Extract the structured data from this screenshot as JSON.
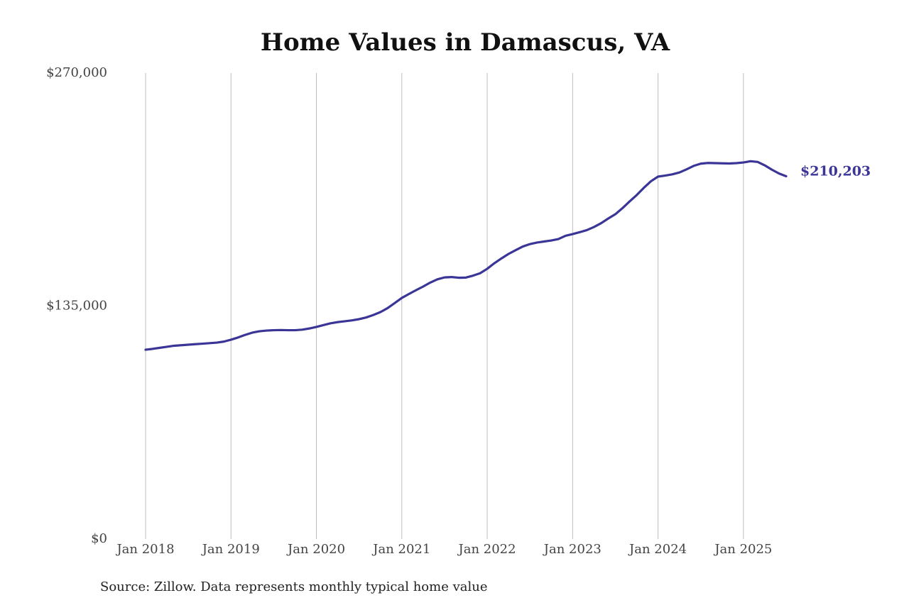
{
  "chart_data": {
    "type": "line",
    "title": "Home Values in Damascus, VA",
    "source": "Source: Zillow. Data represents monthly typical home value",
    "x": [
      "2018-01",
      "2018-02",
      "2018-03",
      "2018-04",
      "2018-05",
      "2018-06",
      "2018-07",
      "2018-08",
      "2018-09",
      "2018-10",
      "2018-11",
      "2018-12",
      "2019-01",
      "2019-02",
      "2019-03",
      "2019-04",
      "2019-05",
      "2019-06",
      "2019-07",
      "2019-08",
      "2019-09",
      "2019-10",
      "2019-11",
      "2019-12",
      "2020-01",
      "2020-02",
      "2020-03",
      "2020-04",
      "2020-05",
      "2020-06",
      "2020-07",
      "2020-08",
      "2020-09",
      "2020-10",
      "2020-11",
      "2020-12",
      "2021-01",
      "2021-02",
      "2021-03",
      "2021-04",
      "2021-05",
      "2021-06",
      "2021-07",
      "2021-08",
      "2021-09",
      "2021-10",
      "2021-11",
      "2021-12",
      "2022-01",
      "2022-02",
      "2022-03",
      "2022-04",
      "2022-05",
      "2022-06",
      "2022-07",
      "2022-08",
      "2022-09",
      "2022-10",
      "2022-11",
      "2022-12",
      "2023-01",
      "2023-02",
      "2023-03",
      "2023-04",
      "2023-05",
      "2023-06",
      "2023-07",
      "2023-08",
      "2023-09",
      "2023-10",
      "2023-11",
      "2023-12",
      "2024-01",
      "2024-02",
      "2024-03",
      "2024-04",
      "2024-05",
      "2024-06",
      "2024-07",
      "2024-08",
      "2024-09",
      "2024-10",
      "2024-11",
      "2024-12",
      "2025-01",
      "2025-02",
      "2025-03",
      "2025-04",
      "2025-05",
      "2025-06",
      "2025-07"
    ],
    "series": [
      {
        "color": "#3a3596",
        "values": [
          109700,
          110200,
          110800,
          111400,
          112000,
          112300,
          112600,
          112900,
          113200,
          113500,
          113800,
          114400,
          115500,
          116800,
          118300,
          119600,
          120400,
          120800,
          121000,
          121100,
          121000,
          121000,
          121300,
          122000,
          122900,
          124000,
          125000,
          125700,
          126200,
          126700,
          127400,
          128400,
          129800,
          131500,
          133800,
          136700,
          139700,
          142000,
          144200,
          146300,
          148600,
          150500,
          151600,
          151800,
          151400,
          151500,
          152600,
          154000,
          156600,
          159800,
          162600,
          165200,
          167400,
          169500,
          170900,
          171800,
          172400,
          173000,
          173800,
          175700,
          176700,
          177800,
          179000,
          180800,
          183000,
          185700,
          188200,
          191700,
          195600,
          199300,
          203500,
          207300,
          210000,
          210600,
          211300,
          212400,
          214200,
          216200,
          217500,
          217900,
          217800,
          217700,
          217600,
          217800,
          218200,
          218900,
          218500,
          216500,
          214000,
          211800,
          210203
        ],
        "value_labels": [
          null,
          null,
          null,
          null,
          null,
          null,
          null,
          null,
          null,
          null,
          null,
          null,
          null,
          null,
          null,
          null,
          null,
          null,
          null,
          null,
          null,
          null,
          null,
          null,
          null,
          null,
          null,
          null,
          null,
          null,
          null,
          null,
          null,
          null,
          null,
          null,
          null,
          null,
          null,
          null,
          null,
          null,
          null,
          null,
          null,
          null,
          null,
          null,
          null,
          null,
          null,
          null,
          null,
          null,
          null,
          null,
          null,
          null,
          null,
          null,
          null,
          null,
          null,
          null,
          null,
          null,
          null,
          null,
          null,
          null,
          null,
          null,
          null,
          null,
          null,
          null,
          null,
          null,
          null,
          null,
          null,
          null,
          null,
          null,
          null,
          null,
          null,
          null,
          null,
          null,
          "$210,203"
        ]
      }
    ],
    "xlim": [
      "2018-01",
      "2025-07"
    ],
    "xticks": [
      {
        "value": "2018-01",
        "label": "Jan 2018"
      },
      {
        "value": "2019-01",
        "label": "Jan 2019"
      },
      {
        "value": "2020-01",
        "label": "Jan 2020"
      },
      {
        "value": "2021-01",
        "label": "Jan 2021"
      },
      {
        "value": "2022-01",
        "label": "Jan 2022"
      },
      {
        "value": "2023-01",
        "label": "Jan 2023"
      },
      {
        "value": "2024-01",
        "label": "Jan 2024"
      },
      {
        "value": "2025-01",
        "label": "Jan 2025"
      }
    ],
    "ylim": [
      0,
      270000
    ],
    "yticks": [
      {
        "value": 0,
        "label": "$0"
      },
      {
        "value": 135000,
        "label": "$135,000"
      },
      {
        "value": 270000,
        "label": "$270,000"
      }
    ],
    "grid": "x"
  }
}
